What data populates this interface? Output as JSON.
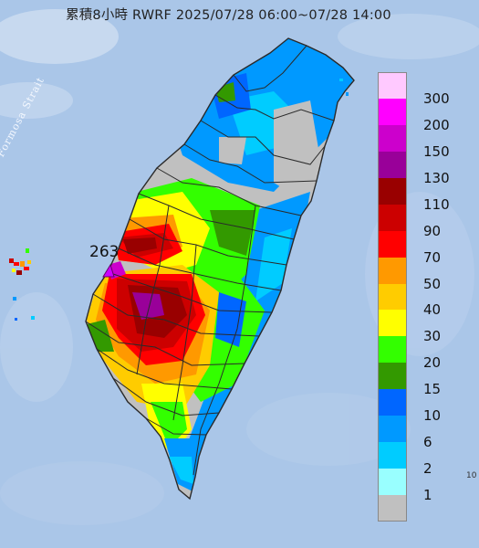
{
  "title": "累積8小時 RWRF 2025/07/28 06:00~07/28 14:00",
  "max_value_label": "263",
  "sea_label": "Formosa Strait",
  "stray_label": "10",
  "colors": {
    "sea": "#aac6e8",
    "land_base": "#c0c0c0",
    "county_border": "#2a2a2a"
  },
  "legend": [
    {
      "label": "300",
      "color": "#ffc9ff"
    },
    {
      "label": "200",
      "color": "#ff00ff"
    },
    {
      "label": "150",
      "color": "#cc00cc"
    },
    {
      "label": "130",
      "color": "#990099"
    },
    {
      "label": "110",
      "color": "#990000"
    },
    {
      "label": "90",
      "color": "#cc0000"
    },
    {
      "label": "70",
      "color": "#ff0000"
    },
    {
      "label": "50",
      "color": "#ff9900"
    },
    {
      "label": "40",
      "color": "#ffcc00"
    },
    {
      "label": "30",
      "color": "#ffff00"
    },
    {
      "label": "20",
      "color": "#33ff00"
    },
    {
      "label": "15",
      "color": "#339900"
    },
    {
      "label": "10",
      "color": "#0066ff"
    },
    {
      "label": "6",
      "color": "#0099ff"
    },
    {
      "label": "2",
      "color": "#00ccff"
    },
    {
      "label": "1",
      "color": "#99ffff"
    },
    {
      "label": "",
      "color": "#c0c0c0"
    }
  ]
}
